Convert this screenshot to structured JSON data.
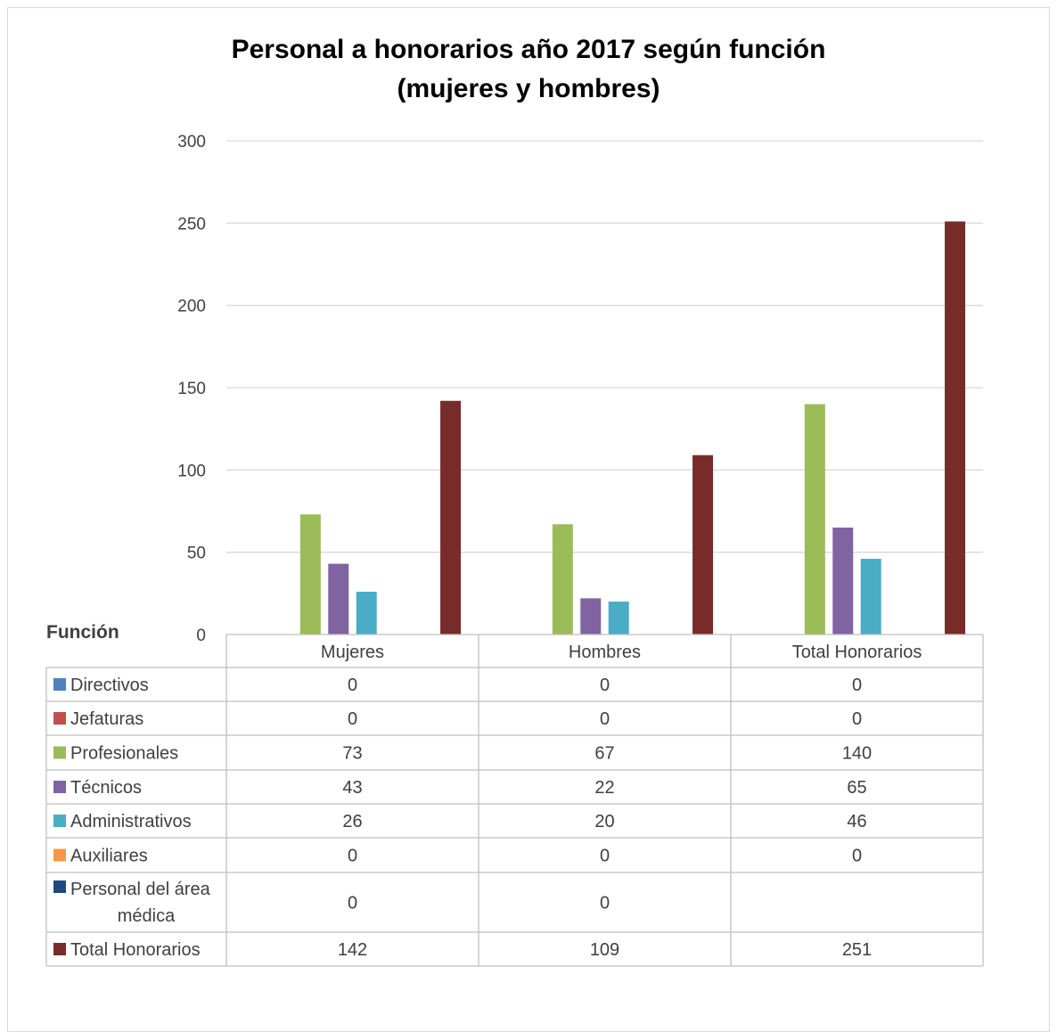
{
  "chart_data": {
    "type": "bar",
    "title_line1": "Personal a honorarios año 2017 según función",
    "title_line2": "(mujeres y hombres)",
    "table_header": "Función",
    "categories": [
      "Mujeres",
      "Hombres",
      "Total Honorarios"
    ],
    "ylim": [
      0,
      300
    ],
    "yticks": [
      0,
      50,
      100,
      150,
      200,
      250,
      300
    ],
    "grid": true,
    "series": [
      {
        "name": "Directivos",
        "color": "#4f81bd",
        "values": [
          0,
          0,
          0
        ],
        "labels": [
          "0",
          "0",
          "0"
        ]
      },
      {
        "name": "Jefaturas",
        "color": "#c0504d",
        "values": [
          0,
          0,
          0
        ],
        "labels": [
          "0",
          "0",
          "0"
        ]
      },
      {
        "name": "Profesionales",
        "color": "#9bbb59",
        "values": [
          73,
          67,
          140
        ],
        "labels": [
          "73",
          "67",
          "140"
        ]
      },
      {
        "name": "Técnicos",
        "color": "#8064a2",
        "values": [
          43,
          22,
          65
        ],
        "labels": [
          "43",
          "22",
          "65"
        ]
      },
      {
        "name": "Administrativos",
        "color": "#4bacc6",
        "values": [
          26,
          20,
          46
        ],
        "labels": [
          "26",
          "20",
          "46"
        ]
      },
      {
        "name": "Auxiliares",
        "color": "#f79646",
        "values": [
          0,
          0,
          0
        ],
        "labels": [
          "0",
          "0",
          "0"
        ]
      },
      {
        "name": "Personal del área médica",
        "name_line1": "Personal del área",
        "name_line2": "médica",
        "color": "#1f497d",
        "values": [
          0,
          0,
          null
        ],
        "labels": [
          "0",
          "0",
          ""
        ]
      },
      {
        "name": "Total Honorarios",
        "color": "#772c2a",
        "values": [
          142,
          109,
          251
        ],
        "labels": [
          "142",
          "109",
          "251"
        ]
      }
    ]
  }
}
